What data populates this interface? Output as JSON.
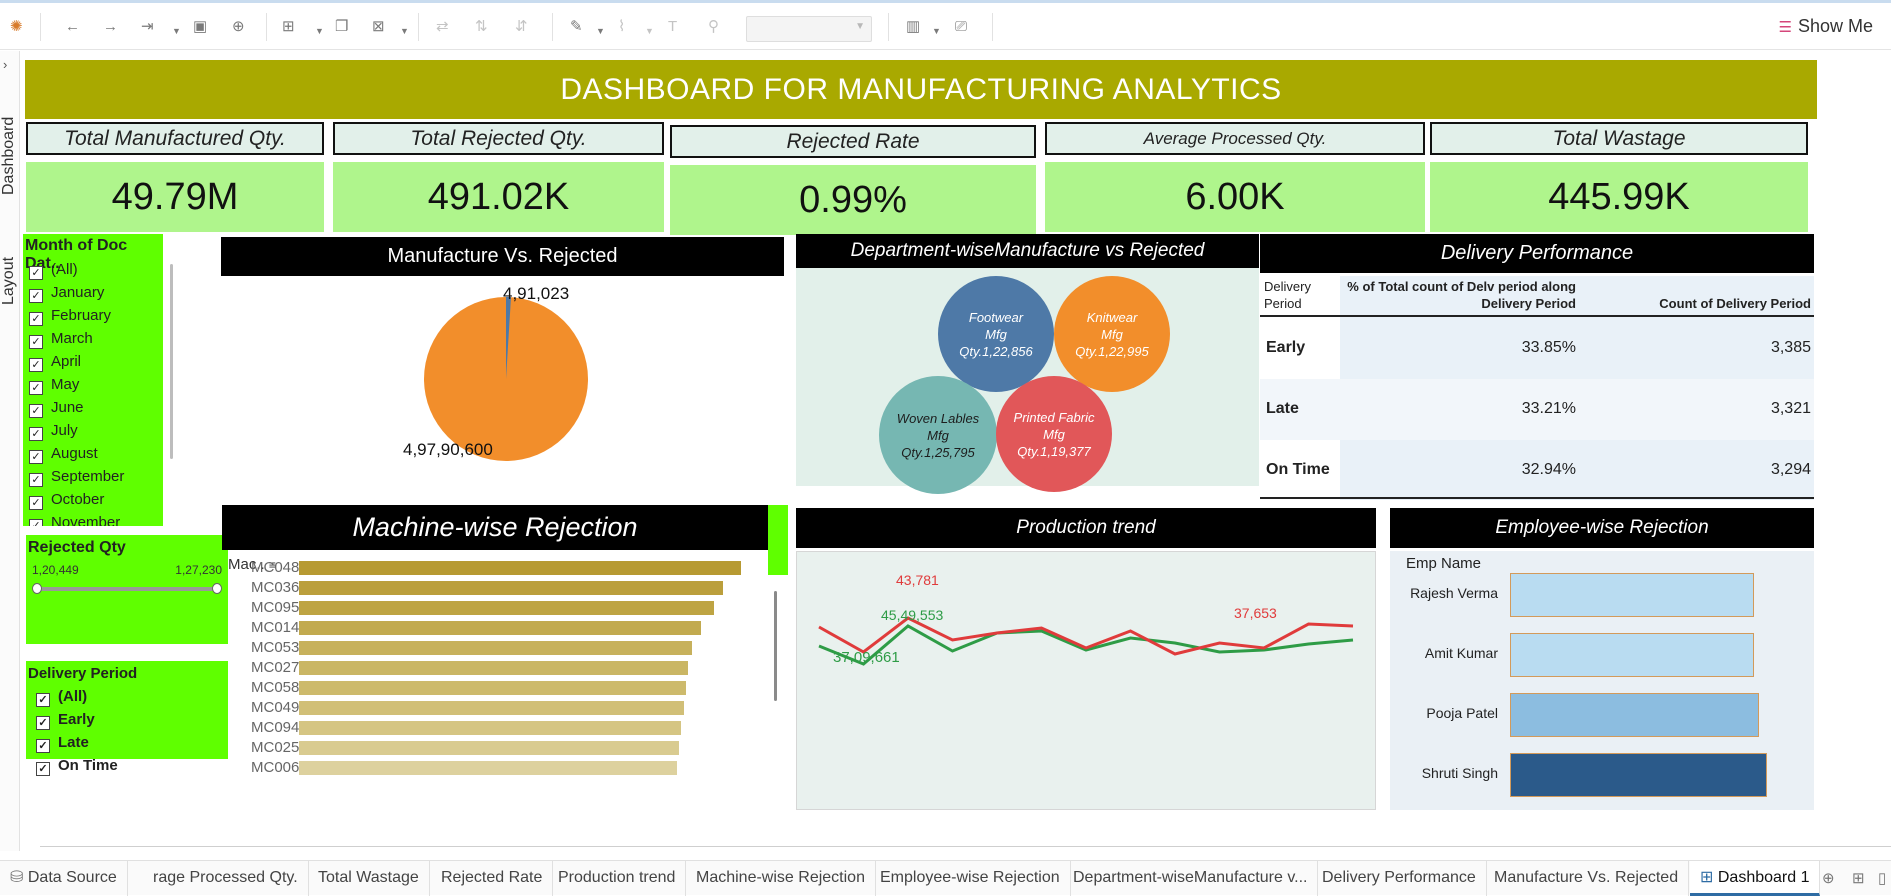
{
  "toolbar": {
    "show_me_label": "Show Me",
    "icons": [
      "tableau-logo-icon",
      "back-icon",
      "forward-icon",
      "redo-icon",
      "save-icon",
      "new-datasource-icon",
      "new-worksheet-icon",
      "duplicate-icon",
      "clear-icon",
      "swap-icon",
      "sort-asc-icon",
      "sort-desc-icon",
      "highlight-icon",
      "paperclip-icon",
      "text-icon",
      "pin-icon",
      "fit-dropdown",
      "chart-type-icon",
      "presentation-icon"
    ]
  },
  "side_tabs": {
    "dashboard_label": "Dashboard",
    "layout_label": "Layout"
  },
  "dashboard": {
    "title": "DASHBOARD FOR MANUFACTURING ANALYTICS",
    "kpis": [
      {
        "label": "Total Manufactured Qty.",
        "value": "49.79M"
      },
      {
        "label": "Total Rejected Qty.",
        "value": "491.02K"
      },
      {
        "label": "Rejected Rate",
        "value": "0.99%"
      },
      {
        "label": "Average Processed Qty.",
        "value": "6.00K"
      },
      {
        "label": "Total Wastage",
        "value": "445.99K"
      }
    ],
    "month_filter": {
      "title": "Month of Doc Dat..",
      "items": [
        "(All)",
        "January",
        "February",
        "March",
        "April",
        "May",
        "June",
        "July",
        "August",
        "September",
        "October",
        "November"
      ]
    },
    "rejected_qty_filter": {
      "title": "Rejected Qty",
      "min": "1,20,449",
      "max": "1,27,230"
    },
    "delivery_filter": {
      "title": "Delivery Period",
      "items": [
        "(All)",
        "Early",
        "Late",
        "On Time"
      ]
    },
    "pie": {
      "title": "Manufacture Vs. Rejected",
      "rejected_label": "4,91,023",
      "manufactured_label": "4,97,90,600",
      "colors": {
        "manufactured": "#f28e2b",
        "rejected": "#4e79a7"
      }
    },
    "bubbles": {
      "title": "Department-wiseManufacture vs Rejected",
      "items": [
        {
          "name": "Footwear",
          "line2": "Mfg",
          "qty": "Qty.1,22,856",
          "color": "#4e79a7"
        },
        {
          "name": "Knitwear",
          "line2": "Mfg",
          "qty": "Qty.1,22,995",
          "color": "#f28e2b"
        },
        {
          "name": "Woven Lables",
          "line2": "Mfg",
          "qty": "Qty.1,25,795",
          "color": "#76b7b2"
        },
        {
          "name": "Printed Fabric",
          "line2": "Mfg",
          "qty": "Qty.1,19,377",
          "color": "#e15759"
        }
      ]
    },
    "delivery": {
      "title": "Delivery Performance",
      "col1": "Delivery Period",
      "col2": "% of Total count of Delv period along Delivery Period",
      "col3": "Count of Delivery Period",
      "rows": [
        {
          "period": "Early",
          "pct": "33.85%",
          "count": "3,385"
        },
        {
          "period": "Late",
          "pct": "33.21%",
          "count": "3,321"
        },
        {
          "period": "On Time",
          "pct": "32.94%",
          "count": "3,294"
        }
      ]
    },
    "machine": {
      "title": "Machine-wise Rejection",
      "header": "Mac..",
      "items": [
        {
          "name": "MC048",
          "value": 1.0,
          "color": "#b79a32"
        },
        {
          "name": "MC036",
          "value": 0.96,
          "color": "#bb9f3c"
        },
        {
          "name": "MC095",
          "value": 0.94,
          "color": "#bea443"
        },
        {
          "name": "MC014",
          "value": 0.91,
          "color": "#c2aa4f"
        },
        {
          "name": "MC053",
          "value": 0.89,
          "color": "#c7b15c"
        },
        {
          "name": "MC027",
          "value": 0.88,
          "color": "#cab664"
        },
        {
          "name": "MC058",
          "value": 0.875,
          "color": "#cdba6c"
        },
        {
          "name": "MC049",
          "value": 0.87,
          "color": "#d1bf77"
        },
        {
          "name": "MC094",
          "value": 0.865,
          "color": "#d5c583"
        },
        {
          "name": "MC025",
          "value": 0.86,
          "color": "#d9cb90"
        },
        {
          "name": "MC006",
          "value": 0.855,
          "color": "#ddd19e"
        }
      ]
    },
    "trend": {
      "title": "Production trend",
      "labels": {
        "red_peak": "43,781",
        "green_mid": "45,49,553",
        "green_low": "37,09,661",
        "red_right": "37,653"
      },
      "red_series": [
        0.55,
        0.8,
        0.46,
        0.68,
        0.61,
        0.56,
        0.76,
        0.59,
        0.82,
        0.71,
        0.76,
        0.52,
        0.54
      ],
      "green_series": [
        0.74,
        0.92,
        0.54,
        0.79,
        0.61,
        0.59,
        0.78,
        0.66,
        0.71,
        0.8,
        0.78,
        0.72,
        0.68
      ],
      "colors": {
        "red": "#e03b3b",
        "green": "#2e9c46"
      }
    },
    "employees": {
      "title": "Employee-wise Rejection",
      "header": "Emp Name",
      "items": [
        {
          "name": "Rajesh Verma",
          "value": 0.92,
          "color": "#b9dcf1"
        },
        {
          "name": "Amit Kumar",
          "value": 0.92,
          "color": "#b9dcf1"
        },
        {
          "name": "Pooja Patel",
          "value": 0.94,
          "color": "#8cbde0"
        },
        {
          "name": "Shruti Singh",
          "value": 0.97,
          "color": "#2b5a8a"
        }
      ]
    }
  },
  "tabs": {
    "datasource": "Data Source",
    "items": [
      "rage Processed Qty.",
      "Total Wastage",
      "Rejected Rate",
      "Production trend",
      "Machine-wise Rejection",
      "Employee-wise Rejection",
      "Department-wiseManufacture v...",
      "Delivery Performance",
      "Manufacture Vs. Rejected"
    ],
    "active": "Dashboard 1"
  }
}
